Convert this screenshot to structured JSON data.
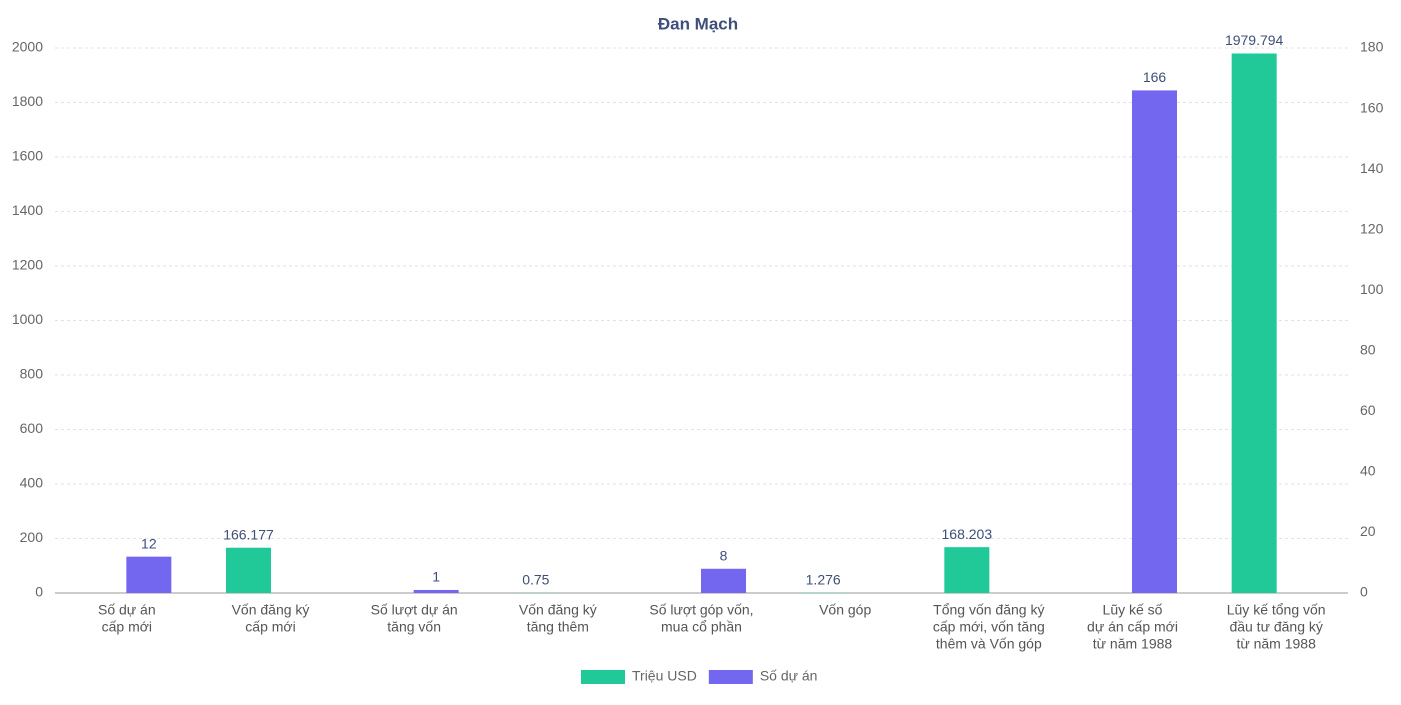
{
  "chart_data": {
    "type": "bar",
    "title": "Đan Mạch",
    "categories": [
      [
        "Số dự án",
        "cấp mới"
      ],
      [
        "Vốn đăng ký",
        "cấp mới"
      ],
      [
        "Số lượt dự án",
        "tăng vốn"
      ],
      [
        "Vốn đăng ký",
        "tăng thêm"
      ],
      [
        "Số lượt góp vốn,",
        "mua cổ phần"
      ],
      [
        "Vốn góp"
      ],
      [
        "Tổng vốn đăng ký",
        "cấp mới, vốn tăng",
        "thêm và Vốn góp"
      ],
      [
        "Lũy kế số",
        "dự án cấp mới",
        "từ năm 1988"
      ],
      [
        "Lũy kế tổng vốn",
        "đầu tư đăng ký",
        "từ năm 1988"
      ]
    ],
    "series": [
      {
        "name": "Triệu USD",
        "color": "#20c997",
        "values": [
          null,
          166.177,
          null,
          0.75,
          null,
          1.276,
          168.203,
          null,
          1979.794
        ]
      },
      {
        "name": "Số dự án",
        "color": "#7367f0",
        "axis": "y2",
        "values": [
          12,
          null,
          1,
          null,
          8,
          null,
          null,
          166,
          null
        ]
      }
    ],
    "ylim": [
      0,
      2000
    ],
    "yticks": [
      0,
      200,
      400,
      600,
      800,
      1000,
      1200,
      1400,
      1600,
      1800,
      2000
    ],
    "y2lim": [
      0,
      180
    ],
    "y2ticks": [
      0,
      20,
      40,
      60,
      80,
      100,
      120,
      140,
      160,
      180
    ],
    "grid": true,
    "legend": "bottom"
  }
}
